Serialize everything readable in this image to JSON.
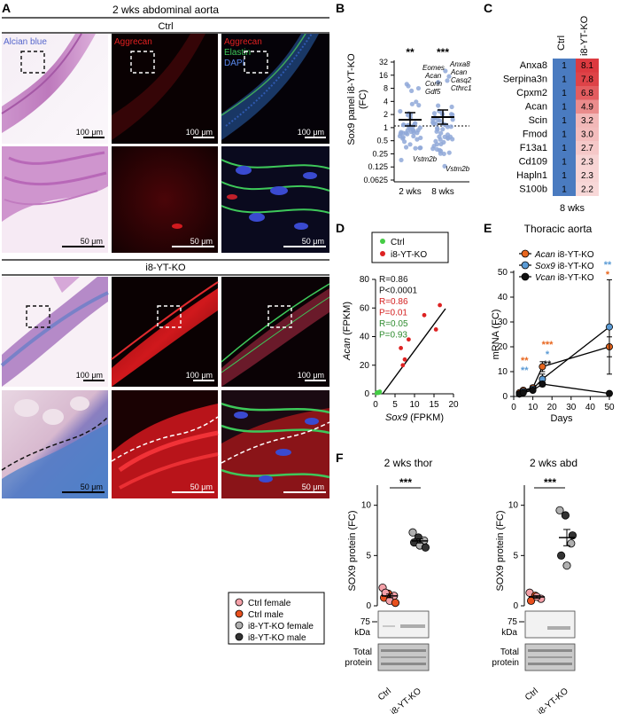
{
  "panelA": {
    "letter": "A",
    "title": "2 wks abdominal aorta",
    "ctrl_header": "Ctrl",
    "ko_header": "i8-YT-KO",
    "stain_alcian": "Alcian blue",
    "stain_aggrecan": "Aggrecan",
    "stain_merge": [
      "Aggrecan",
      "Elastin",
      "DAPI"
    ],
    "scale_100": "100 μm",
    "scale_50": "50 μm"
  },
  "panelB": {
    "letter": "B",
    "ylabel_line1": "Sox9 panel i8-YT-KO",
    "ylabel_line2": "(FC)",
    "yticks": [
      "32",
      "16",
      "8",
      "4",
      "2",
      "1",
      "0.5",
      "0.25",
      "0.125",
      "0.0625"
    ],
    "groups": [
      "2 wks",
      "8 wks"
    ],
    "sig": [
      "**",
      "***"
    ],
    "genes_2wk": [
      "Eomes",
      "Acan",
      "Corin",
      "Gdf5"
    ],
    "genes_8wk": [
      "Anxa8",
      "Acan",
      "Casq2",
      "Cthrc1"
    ],
    "low_gene_2wk": "Vstm2b",
    "low_gene_8wk": "Vstm2b"
  },
  "panelC": {
    "letter": "C",
    "col_ctrl": "Ctrl",
    "col_ko": "i8-YT-KO",
    "footer": "8 wks",
    "rows": [
      {
        "gene": "Anxa8",
        "ctrl": "1",
        "ko": "8.1",
        "color": "#dc3a40"
      },
      {
        "gene": "Serpina3n",
        "ctrl": "1",
        "ko": "7.8",
        "color": "#de4348"
      },
      {
        "gene": "Cpxm2",
        "ctrl": "1",
        "ko": "6.8",
        "color": "#e35d60"
      },
      {
        "gene": "Acan",
        "ctrl": "1",
        "ko": "4.9",
        "color": "#ea8c8c"
      },
      {
        "gene": "Scin",
        "ctrl": "1",
        "ko": "3.2",
        "color": "#f2b8b8"
      },
      {
        "gene": "Fmod",
        "ctrl": "1",
        "ko": "3.0",
        "color": "#f3bdbd"
      },
      {
        "gene": "F13a1",
        "ctrl": "1",
        "ko": "2.7",
        "color": "#f5c8c8"
      },
      {
        "gene": "Cd109",
        "ctrl": "1",
        "ko": "2.3",
        "color": "#f7d4d4"
      },
      {
        "gene": "Hapln1",
        "ctrl": "1",
        "ko": "2.3",
        "color": "#f7d4d4"
      },
      {
        "gene": "S100b",
        "ctrl": "1",
        "ko": "2.2",
        "color": "#f8d8d8"
      }
    ],
    "ctrl_color": "#4a7bc0"
  },
  "panelD": {
    "letter": "D",
    "legend": [
      "Ctrl",
      "i8-YT-KO"
    ],
    "ylabel_gene": "Acan",
    "ylabel_unit": "(FPKM)",
    "xlabel_gene": "Sox9",
    "xlabel_unit": "(FPKM)",
    "xticks": [
      "0",
      "5",
      "10",
      "15",
      "20"
    ],
    "yticks": [
      "0",
      "20",
      "40",
      "60",
      "80"
    ],
    "stats": [
      {
        "text": "R=0.86",
        "color": "#111111"
      },
      {
        "text": "P<0.0001",
        "color": "#111111"
      },
      {
        "text": "R=0.86",
        "color": "#d42020"
      },
      {
        "text": "P=0.01",
        "color": "#d42020"
      },
      {
        "text": "R=0.05",
        "color": "#2e8b2e"
      },
      {
        "text": "P=0.93",
        "color": "#2e8b2e"
      }
    ],
    "ctrl_color": "#44cc44",
    "ko_color": "#dd2222"
  },
  "panelE": {
    "letter": "E",
    "title": "Thoracic aorta",
    "ylabel": "mRNA (FC)",
    "xlabel": "Days",
    "xticks": [
      "0",
      "10",
      "20",
      "30",
      "40",
      "50"
    ],
    "yticks": [
      "0",
      "10",
      "20",
      "30",
      "40",
      "50"
    ],
    "legend": [
      {
        "gene": "Acan",
        "rest": " i8-YT-KO",
        "color": "#e8661e"
      },
      {
        "gene": "Sox9",
        "rest": " i8-YT-KO",
        "color": "#5b9bd5"
      },
      {
        "gene": "Vcan",
        "rest": " i8-YT-KO",
        "color": "#111111"
      }
    ],
    "sig_d5": [
      "**",
      "**"
    ],
    "sig_d15": [
      "***",
      "*",
      "**"
    ],
    "sig_d50": [
      "**",
      "*"
    ]
  },
  "panelF": {
    "letter": "F",
    "title_thor": "2 wks thor",
    "title_abd": "2 wks abd",
    "ylabel": "SOX9 protein (FC)",
    "yticks": [
      "0",
      "5",
      "10"
    ],
    "sig": "***",
    "blot_mw": "75",
    "blot_unit": "kDa",
    "total_line1": "Total",
    "total_line2": "protein",
    "xcats": [
      "Ctrl",
      "i8-YT-KO"
    ]
  },
  "legendBox": {
    "items": [
      {
        "label": "Ctrl female",
        "color": "#f4a0a8"
      },
      {
        "label": "Ctrl male",
        "color": "#e8501e"
      },
      {
        "label": "i8-YT-KO female",
        "color": "#b0b0b0"
      },
      {
        "label": "i8-YT-KO male",
        "color": "#333333"
      }
    ]
  },
  "chart_data": [
    {
      "type": "scatter",
      "panel": "D",
      "xlabel": "Sox9 (FPKM)",
      "ylabel": "Acan (FPKM)",
      "xlim": [
        0,
        20
      ],
      "ylim": [
        0,
        80
      ],
      "series": [
        {
          "name": "Ctrl",
          "x": [
            0.3,
            0.5,
            0.7,
            0.9,
            1.0,
            1.1
          ],
          "y": [
            0.5,
            1,
            0.6,
            1.2,
            0.8,
            1.5
          ]
        },
        {
          "name": "i8-YT-KO",
          "x": [
            6.5,
            7.0,
            7.5,
            8.5,
            12.5,
            15.5,
            16.5
          ],
          "y": [
            32,
            20,
            24,
            38,
            55,
            45,
            62
          ]
        }
      ]
    },
    {
      "type": "line",
      "panel": "E",
      "xlabel": "Days",
      "ylabel": "mRNA (FC)",
      "xlim": [
        0,
        50
      ],
      "ylim": [
        0,
        50
      ],
      "series": [
        {
          "name": "Acan i8-YT-KO",
          "x": [
            3,
            5,
            10,
            15,
            50
          ],
          "y": [
            1.5,
            2.5,
            3.5,
            12,
            20
          ],
          "err": [
            0.5,
            0.8,
            1,
            2,
            4
          ]
        },
        {
          "name": "Sox9 i8-YT-KO",
          "x": [
            3,
            5,
            10,
            15,
            50
          ],
          "y": [
            1,
            2,
            3,
            7,
            28
          ],
          "err": [
            0.3,
            0.5,
            0.8,
            2,
            19
          ]
        },
        {
          "name": "Vcan i8-YT-KO",
          "x": [
            3,
            5,
            10,
            15,
            50
          ],
          "y": [
            1,
            1.5,
            2.5,
            5,
            1.2
          ],
          "err": [
            0.2,
            0.3,
            0.5,
            1,
            0.3
          ]
        }
      ]
    },
    {
      "type": "scatter",
      "panel": "F-thor",
      "ylabel": "SOX9 protein (FC)",
      "categories": [
        "Ctrl",
        "i8-YT-KO"
      ],
      "ylim": [
        0,
        12
      ],
      "series": [
        {
          "name": "Ctrl",
          "values": [
            1.8,
            1.2,
            1.0,
            0.8,
            0.5,
            0.3,
            1.3
          ]
        },
        {
          "name": "i8-YT-KO",
          "values": [
            7.3,
            6.8,
            6.5,
            6.3,
            6.0,
            5.8
          ]
        }
      ]
    },
    {
      "type": "scatter",
      "panel": "F-abd",
      "ylabel": "SOX9 protein (FC)",
      "categories": [
        "Ctrl",
        "i8-YT-KO"
      ],
      "ylim": [
        0,
        12
      ],
      "series": [
        {
          "name": "Ctrl",
          "values": [
            1.3,
            1.0,
            0.7,
            0.5,
            0.9
          ]
        },
        {
          "name": "i8-YT-KO",
          "values": [
            9.5,
            9.0,
            6.2,
            5.0,
            4.0,
            7.0
          ]
        }
      ]
    }
  ]
}
